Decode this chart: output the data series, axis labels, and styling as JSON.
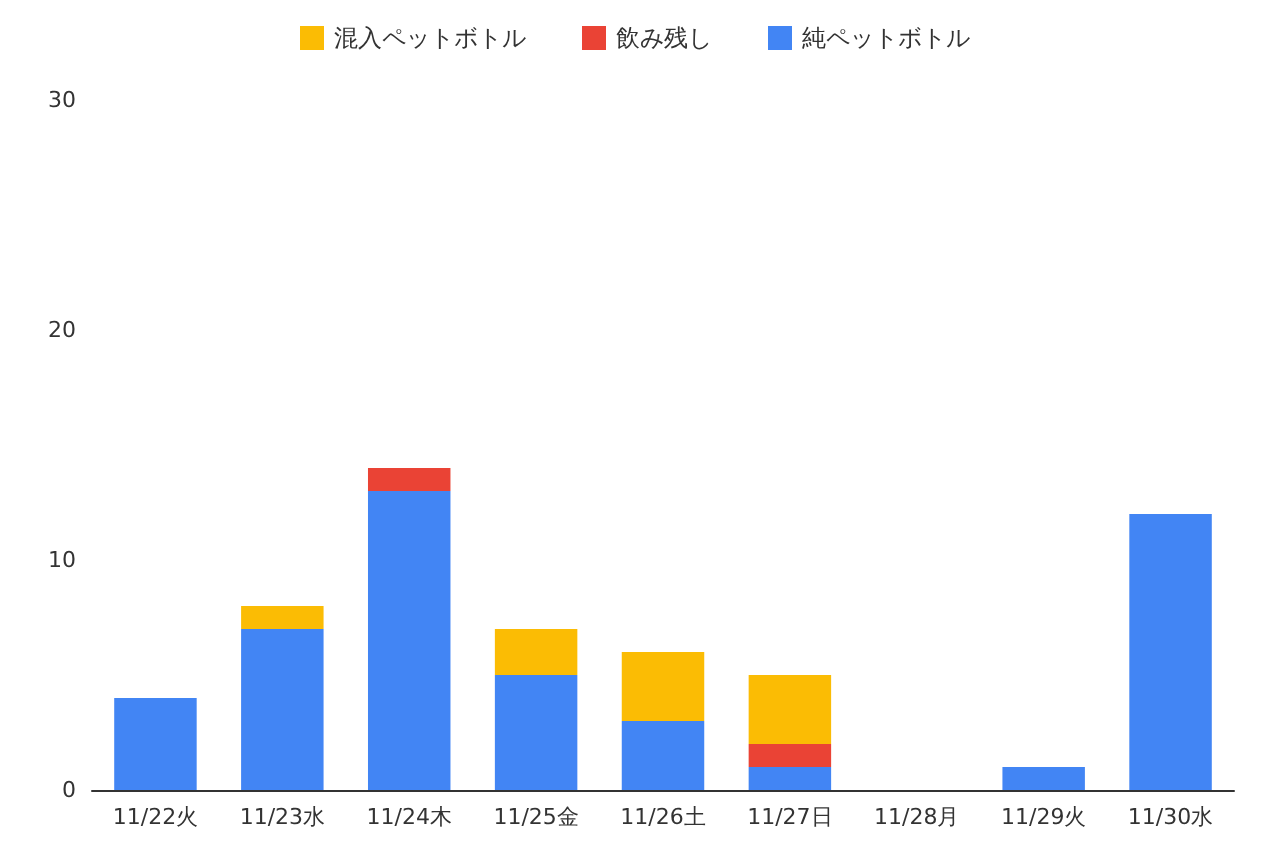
{
  "chart_data": {
    "type": "bar",
    "stacked": true,
    "categories": [
      "11/22火",
      "11/23水",
      "11/24木",
      "11/25金",
      "11/26土",
      "11/27日",
      "11/28月",
      "11/29火",
      "11/30水"
    ],
    "series": [
      {
        "name": "純ペットボトル",
        "color": "#4285f4",
        "values": [
          4,
          7,
          13,
          5,
          3,
          1,
          0,
          1,
          12
        ]
      },
      {
        "name": "飲み残し",
        "color": "#ea4335",
        "values": [
          0,
          0,
          1,
          0,
          0,
          1,
          0,
          0,
          0
        ]
      },
      {
        "name": "混入ペットボトル",
        "color": "#fbbc04",
        "values": [
          0,
          1,
          0,
          2,
          3,
          3,
          0,
          0,
          0
        ]
      }
    ],
    "ylim": [
      0,
      30
    ],
    "yticks": [
      0,
      10,
      20,
      30
    ],
    "grid": false,
    "legend": "top"
  }
}
